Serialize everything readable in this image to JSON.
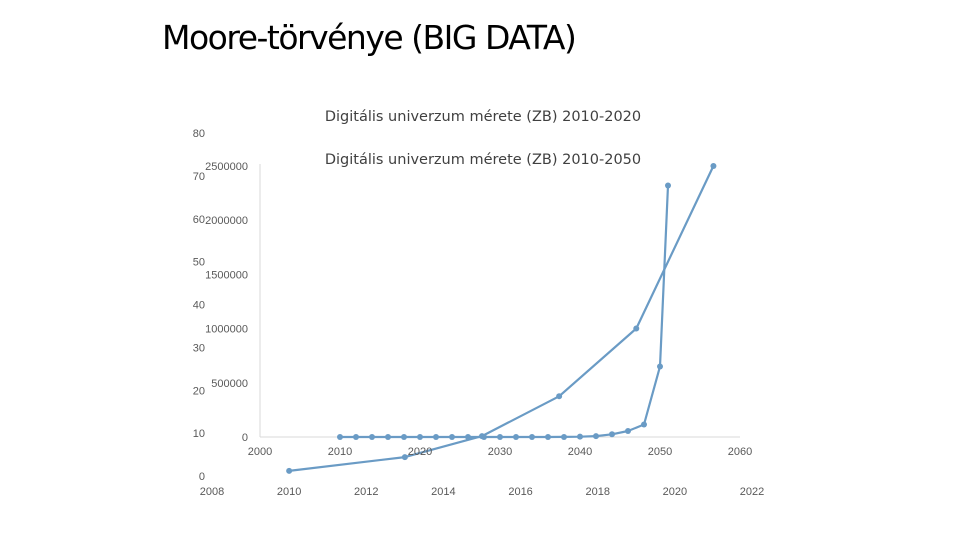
{
  "slide": {
    "title": "Moore-törvénye (BIG DATA)"
  },
  "chart_data": [
    {
      "type": "line",
      "title": "Digitális univerzum mérete (ZB) 2010-2020",
      "x": [
        2010,
        2013,
        2015,
        2017,
        2019,
        2021
      ],
      "series": [
        {
          "name": "",
          "values": [
            1.2,
            4.4,
            9.3,
            18.6,
            34.4,
            72.3
          ]
        }
      ],
      "xlim": [
        2008,
        2022
      ],
      "xticks": [
        2008,
        2010,
        2012,
        2014,
        2016,
        2018,
        2020,
        2022
      ],
      "ylim": [
        0,
        80
      ],
      "yticks": [
        0,
        10,
        20,
        30,
        40,
        50,
        60,
        70,
        80
      ],
      "grid": false,
      "legend": "none",
      "color": "#6a9bc5"
    },
    {
      "type": "line",
      "title": "Digitális univerzum mérete (ZB) 2010-2050",
      "x": [
        2010,
        2012,
        2014,
        2016,
        2018,
        2020,
        2022,
        2024,
        2026,
        2028,
        2030,
        2032,
        2034,
        2036,
        2038,
        2040,
        2042,
        2044,
        2046,
        2048,
        2050,
        2051
      ],
      "series": [
        {
          "name": "",
          "values": [
            0,
            0,
            0,
            0,
            0,
            0,
            0,
            0,
            0,
            0,
            0,
            0,
            0,
            0,
            500,
            3000,
            8000,
            25000,
            55000,
            115000,
            650000,
            2320000
          ]
        }
      ],
      "xlim": [
        2000,
        2060
      ],
      "xticks": [
        2000,
        2010,
        2020,
        2030,
        2040,
        2050,
        2060
      ],
      "ylim": [
        0,
        2500000
      ],
      "yticks": [
        0,
        500000,
        1000000,
        1500000,
        2000000,
        2500000
      ],
      "grid": false,
      "legend": "none",
      "color": "#6a9bc5"
    }
  ]
}
